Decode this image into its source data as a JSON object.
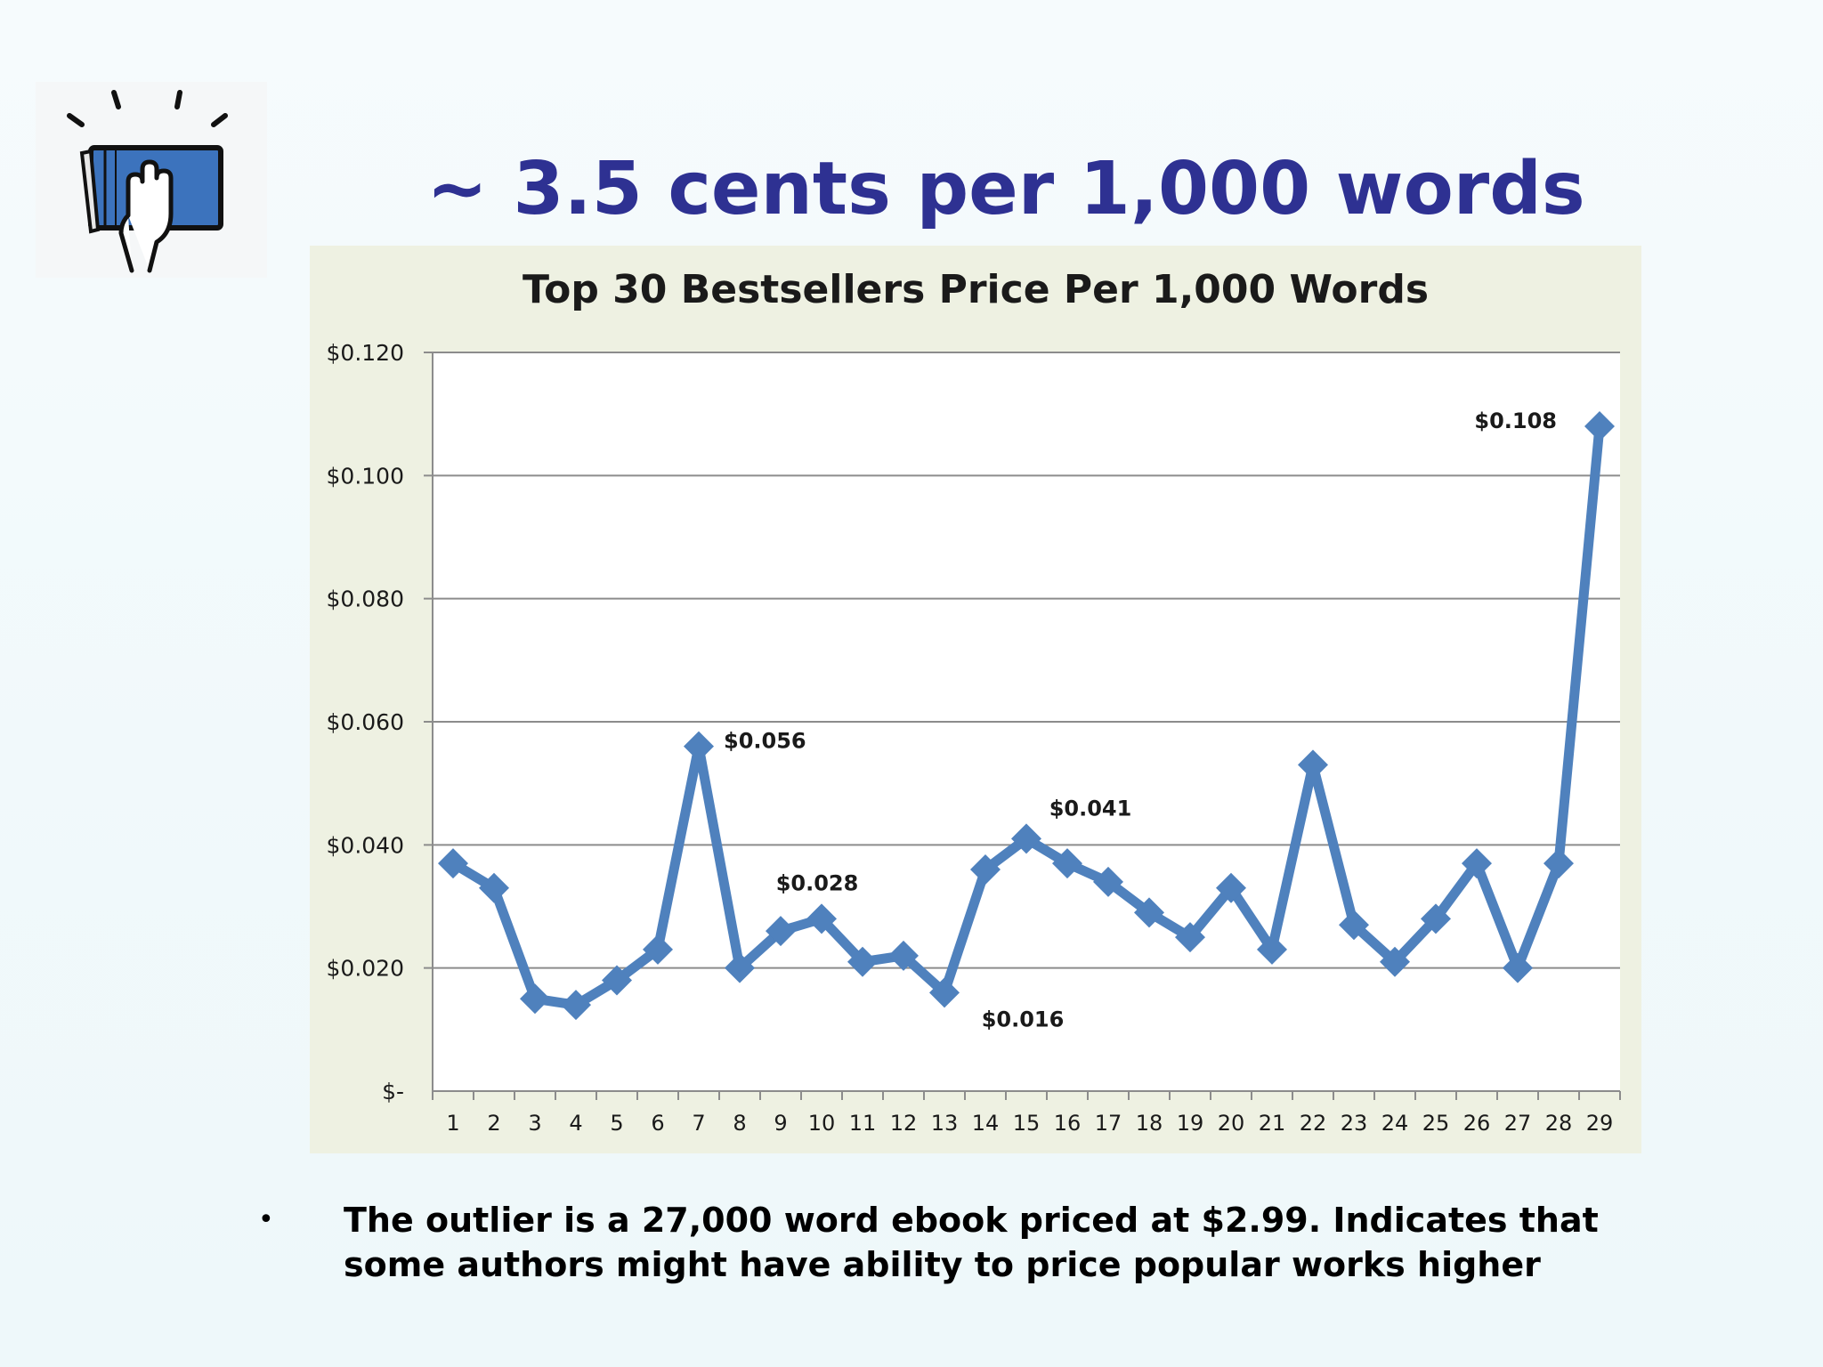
{
  "slide": {
    "title": "~ 3.5 cents per 1,000 words",
    "logo_icon": "book-hand-icon",
    "bullet_symbol": "•",
    "bullet_lines": [
      "The outlier is a 27,000 word ebook priced at $2.99.  Indicates that",
      "some authors might have ability to price popular works higher"
    ]
  },
  "colors": {
    "title": "#2e3192",
    "series": "#4f81bd",
    "chart_background": "#eef1e2",
    "plot_background": "#ffffff",
    "gridline": "#8c8c8c"
  },
  "chart_data": {
    "type": "line",
    "title": "Top 30 Bestsellers Price Per 1,000 Words",
    "xlabel": "",
    "ylabel": "",
    "x": [
      1,
      2,
      3,
      4,
      5,
      6,
      7,
      8,
      9,
      10,
      11,
      12,
      13,
      14,
      15,
      16,
      17,
      18,
      19,
      20,
      21,
      22,
      23,
      24,
      25,
      26,
      27,
      28,
      29
    ],
    "series": [
      {
        "values": [
          0.037,
          0.033,
          0.015,
          0.014,
          0.018,
          0.023,
          0.056,
          0.02,
          0.026,
          0.028,
          0.021,
          0.022,
          0.016,
          0.036,
          0.041,
          0.037,
          0.034,
          0.029,
          0.025,
          0.033,
          0.023,
          0.053,
          0.027,
          0.021,
          0.028,
          0.037,
          0.02,
          0.037,
          0.108
        ],
        "marker": "diamond"
      }
    ],
    "ylim": [
      0,
      0.12
    ],
    "yticks": [
      0,
      0.02,
      0.04,
      0.06,
      0.08,
      0.1,
      0.12
    ],
    "ytick_labels": [
      "$-",
      "$0.020",
      "$0.040",
      "$0.060",
      "$0.080",
      "$0.100",
      "$0.120"
    ],
    "grid": true,
    "legend": "none",
    "annotations": [
      {
        "x": 7,
        "text": "$0.056",
        "position": "right"
      },
      {
        "x": 10,
        "text": "$0.028",
        "position": "above"
      },
      {
        "x": 13,
        "text": "$0.016",
        "position": "below-right"
      },
      {
        "x": 15,
        "text": "$0.041",
        "position": "above-right"
      },
      {
        "x": 29,
        "text": "$0.108",
        "position": "left"
      }
    ]
  }
}
